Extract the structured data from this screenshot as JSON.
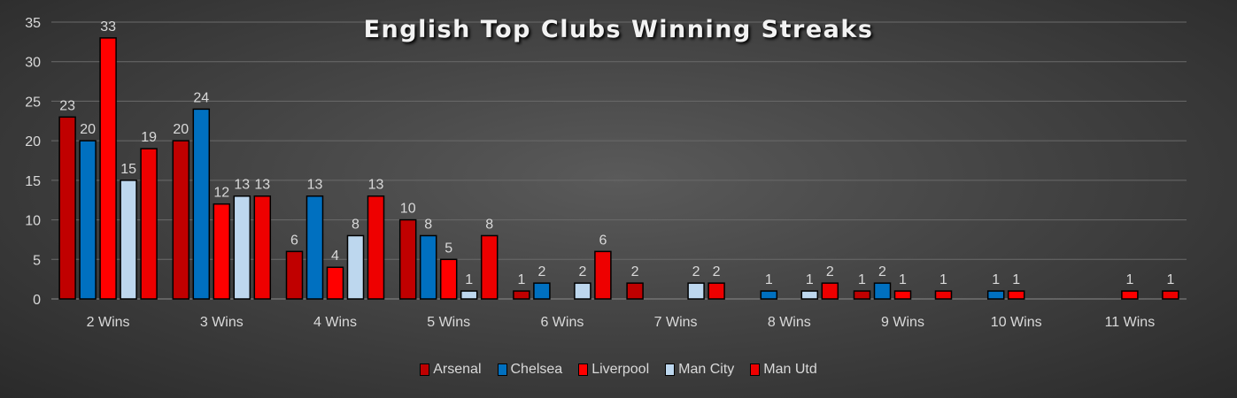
{
  "chart_data": {
    "type": "bar",
    "title": "English Top Clubs Winning Streaks",
    "xlabel": "",
    "ylabel": "",
    "ylim": [
      0,
      35
    ],
    "yticks": [
      0,
      5,
      10,
      15,
      20,
      25,
      30,
      35
    ],
    "grid": true,
    "legend_position": "bottom",
    "categories": [
      "2 Wins",
      "3 Wins",
      "4 Wins",
      "5 Wins",
      "6 Wins",
      "7 Wins",
      "8 Wins",
      "9 Wins",
      "10 Wins",
      "11 Wins"
    ],
    "series": [
      {
        "name": "Arsenal",
        "color": "#c00000",
        "values": [
          23,
          20,
          6,
          10,
          1,
          2,
          null,
          1,
          null,
          null
        ]
      },
      {
        "name": "Chelsea",
        "color": "#0070c0",
        "values": [
          20,
          24,
          13,
          8,
          2,
          null,
          1,
          2,
          1,
          null
        ]
      },
      {
        "name": "Liverpool",
        "color": "#ff0000",
        "values": [
          33,
          12,
          4,
          5,
          null,
          null,
          null,
          1,
          1,
          1
        ]
      },
      {
        "name": "Man City",
        "color": "#bdd7ee",
        "values": [
          15,
          13,
          8,
          1,
          2,
          2,
          1,
          null,
          null,
          null
        ]
      },
      {
        "name": "Man Utd",
        "color": "#ee0000",
        "values": [
          19,
          13,
          13,
          8,
          6,
          2,
          2,
          1,
          null,
          1
        ]
      }
    ]
  }
}
